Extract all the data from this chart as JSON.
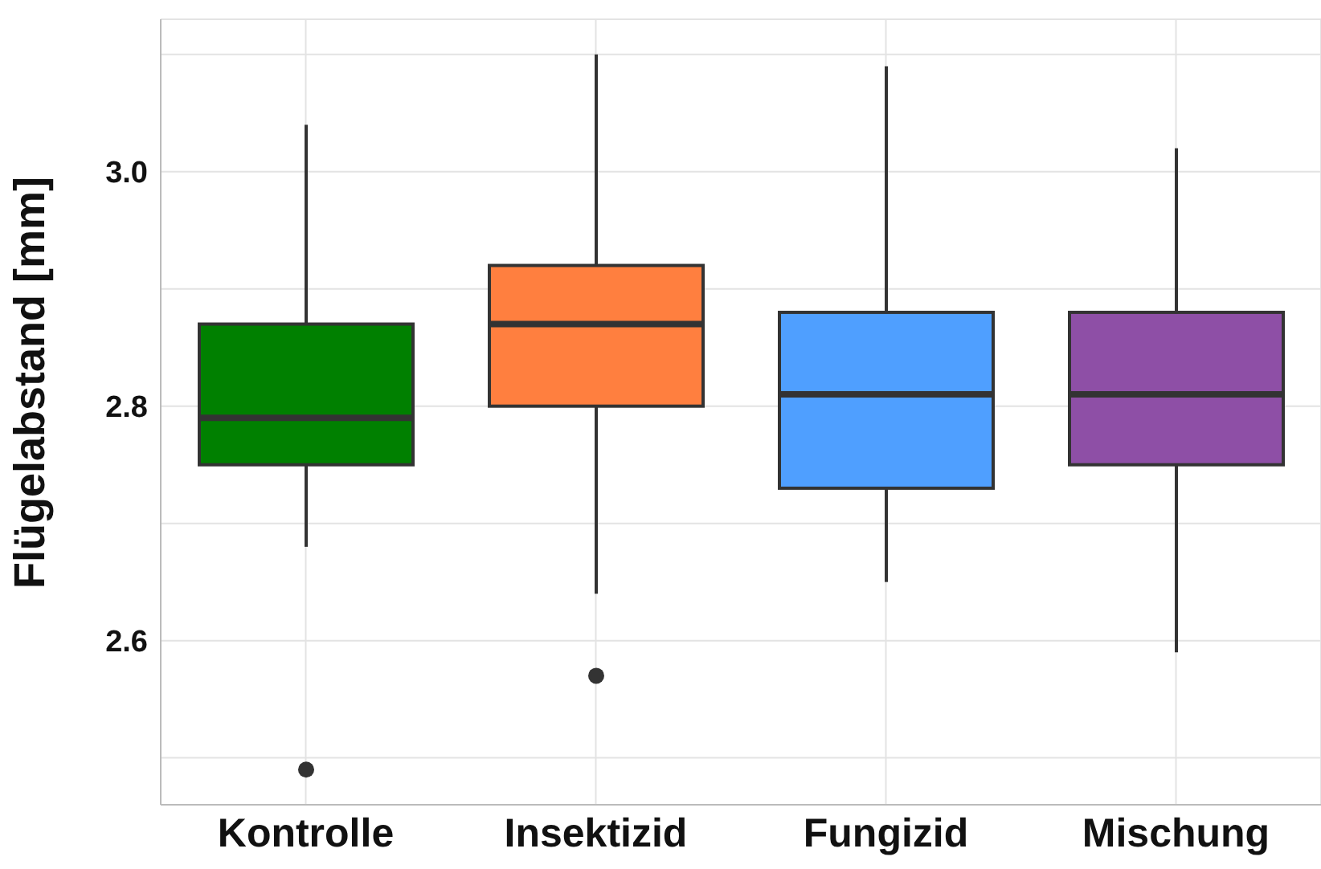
{
  "chart_data": {
    "type": "box",
    "ylabel": "Flügelabstand [mm]",
    "categories": [
      "Kontrolle",
      "Insektizid",
      "Fungizid",
      "Mischung"
    ],
    "colors": [
      "#008000",
      "#ff7f3f",
      "#4f9fff",
      "#8e4fa6"
    ],
    "boxes": [
      {
        "low": 2.68,
        "q1": 2.75,
        "median": 2.79,
        "q3": 2.87,
        "high": 3.04,
        "outliers": [
          2.49
        ]
      },
      {
        "low": 2.64,
        "q1": 2.8,
        "median": 2.87,
        "q3": 2.92,
        "high": 3.1,
        "outliers": [
          2.57
        ]
      },
      {
        "low": 2.65,
        "q1": 2.73,
        "median": 2.81,
        "q3": 2.88,
        "high": 3.09
      },
      {
        "low": 2.59,
        "q1": 2.75,
        "median": 2.81,
        "q3": 2.88,
        "high": 3.02
      }
    ],
    "ylim": [
      2.46,
      3.13
    ],
    "yticks": [
      {
        "value": 2.5,
        "label": null
      },
      2.6,
      {
        "value": 2.7,
        "label": null
      },
      2.8,
      {
        "value": 2.9,
        "label": null
      },
      {
        "value": 3,
        "label": "3.0"
      },
      {
        "value": 3.1,
        "label": null
      }
    ],
    "grid": true
  }
}
